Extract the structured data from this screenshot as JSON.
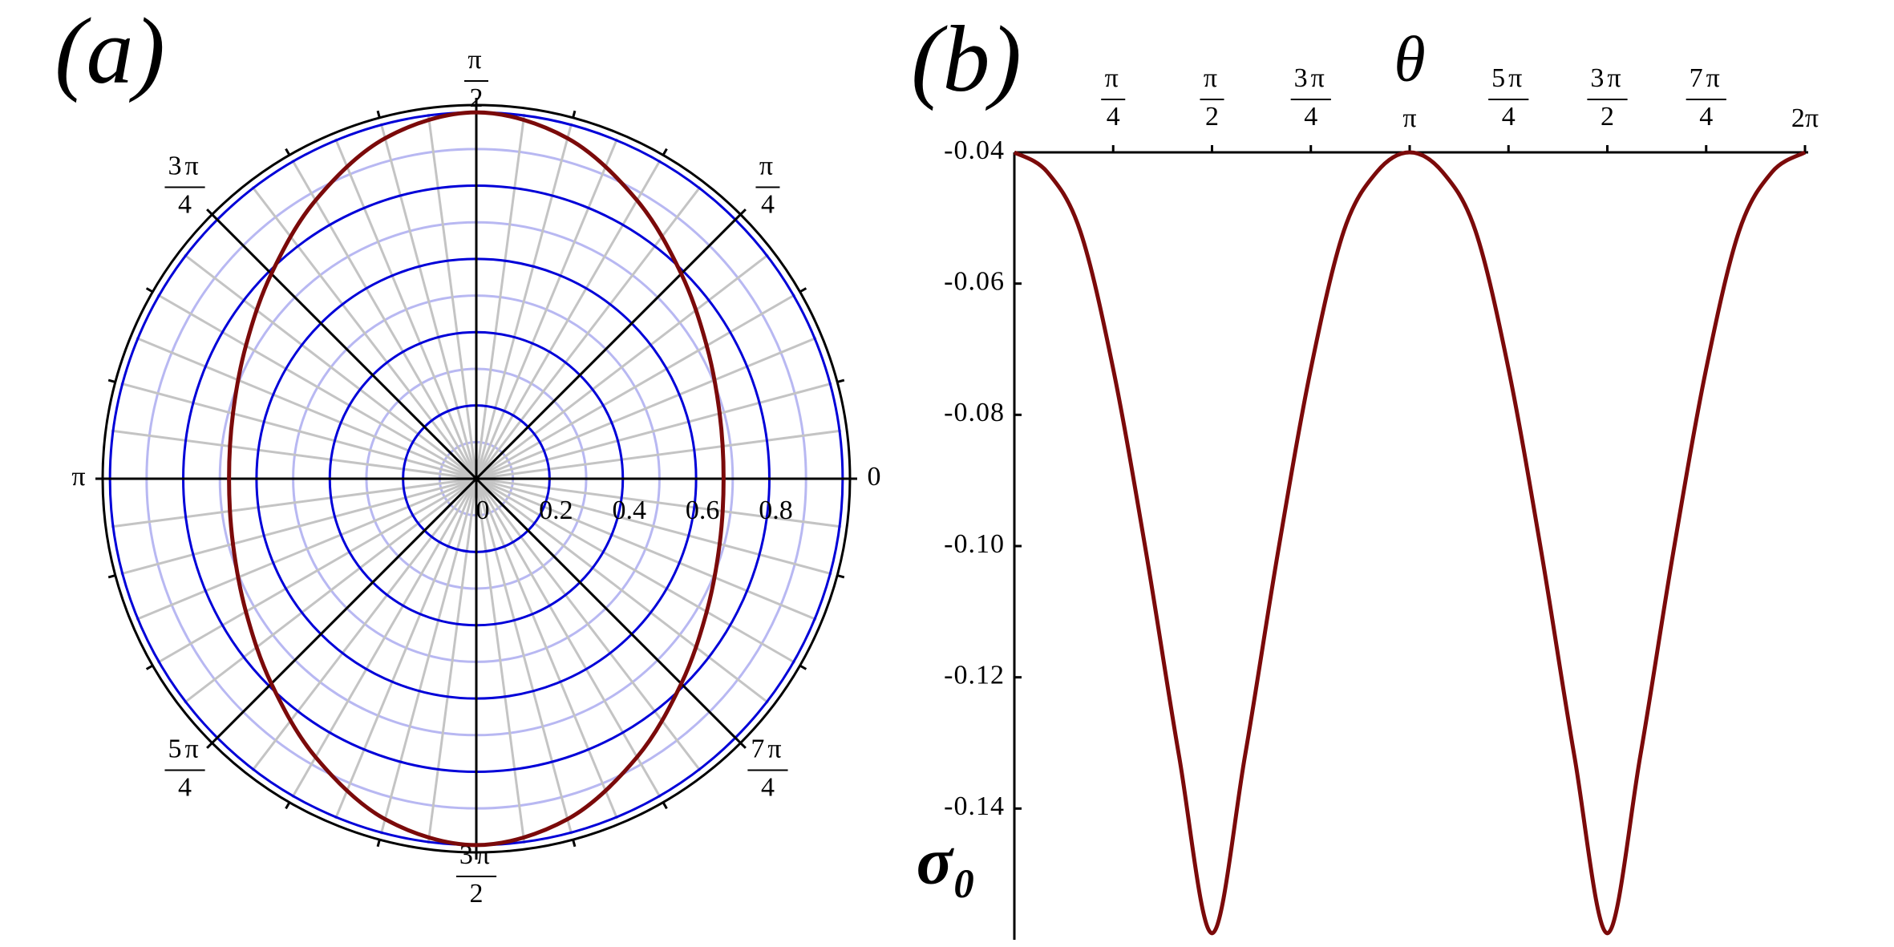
{
  "chart_data": [
    {
      "type": "polar",
      "title": "(a)",
      "x": [
        0,
        0.2618,
        0.5236,
        0.7854,
        1.0472,
        1.309,
        1.5708,
        1.8326,
        2.0944,
        2.3562,
        2.618,
        2.8798,
        3.1416,
        3.4034,
        3.6652,
        3.927,
        4.1888,
        4.4506,
        4.7124,
        4.9742,
        5.236,
        5.4978,
        5.7596,
        6.0214
      ],
      "series": [
        {
          "color": "#7b0a0a",
          "values": [
            0.675,
            0.6877,
            0.7262,
            0.7912,
            0.8775,
            0.9622,
            1,
            0.9622,
            0.8775,
            0.7912,
            0.7262,
            0.6877,
            0.675,
            0.6877,
            0.7262,
            0.7912,
            0.8775,
            0.9622,
            1,
            0.9622,
            0.8775,
            0.7912,
            0.7262,
            0.6877
          ]
        }
      ],
      "rlim": [
        0,
        1.02
      ],
      "rticks": [
        0,
        0.2,
        0.4,
        0.6,
        0.8
      ],
      "xticks": [
        0,
        {
          "value": 0.7854,
          "label": "π/4"
        },
        {
          "value": 1.5708,
          "label": "π/2"
        },
        {
          "value": 2.3562,
          "label": "3π/4"
        },
        {
          "value": 3.1416,
          "label": "π"
        },
        {
          "value": 3.927,
          "label": "5π/4"
        },
        {
          "value": 4.7124,
          "label": "3π/2"
        },
        {
          "value": 5.4978,
          "label": "7π/4"
        }
      ],
      "grid": true
    },
    {
      "type": "line",
      "title": "(b)",
      "xlabel": "θ",
      "ylabel": "σ₀",
      "x": [
        0,
        0.2618,
        0.5236,
        0.7854,
        1.0472,
        1.309,
        1.5708,
        1.8326,
        2.0944,
        2.3562,
        2.618,
        2.8798,
        3.1416,
        3.4034,
        3.6652,
        3.927,
        4.1888,
        4.4506,
        4.7124,
        4.9742,
        5.236,
        5.4978,
        5.7596,
        6.0214,
        6.2832
      ],
      "series": [
        {
          "color": "#7b0a0a",
          "values": [
            -0.04,
            -0.043,
            -0.052,
            -0.073,
            -0.101,
            -0.132,
            -0.159,
            -0.132,
            -0.101,
            -0.073,
            -0.052,
            -0.043,
            -0.04,
            -0.043,
            -0.052,
            -0.073,
            -0.101,
            -0.132,
            -0.159,
            -0.132,
            -0.101,
            -0.073,
            -0.052,
            -0.043,
            -0.04
          ]
        }
      ],
      "xlim": [
        0,
        6.2832
      ],
      "ylim": [
        -0.16,
        -0.04
      ],
      "xticks": [
        {
          "value": 0.7854,
          "label": "π/4"
        },
        {
          "value": 1.5708,
          "label": "π/2"
        },
        {
          "value": 2.3562,
          "label": "3π/4"
        },
        {
          "value": 3.1416,
          "label": "π"
        },
        {
          "value": 3.927,
          "label": "5π/4"
        },
        {
          "value": 4.7124,
          "label": "3π/2"
        },
        {
          "value": 5.4978,
          "label": "7π/4"
        },
        {
          "value": 6.2832,
          "label": "2π"
        }
      ],
      "yticks": [
        -0.04,
        -0.06,
        -0.08,
        {
          "value": -0.1,
          "label": "-0.10"
        },
        -0.12,
        -0.14
      ]
    }
  ]
}
